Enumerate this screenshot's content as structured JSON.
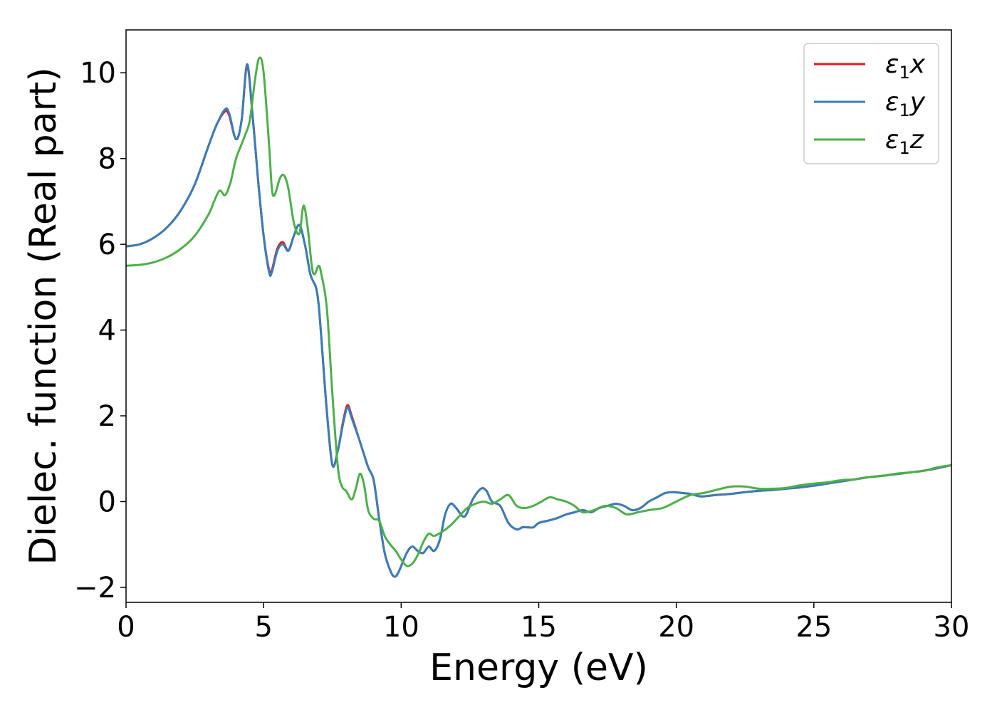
{
  "chart_data": {
    "type": "line",
    "title": "",
    "xlabel": "Energy (eV)",
    "ylabel": "Dielec. function (Real part)",
    "xlim": [
      0,
      30
    ],
    "ylim": [
      -2.35,
      11.0
    ],
    "xticks": [
      0,
      5,
      10,
      15,
      20,
      25,
      30
    ],
    "xtick_labels": [
      "0",
      "5",
      "10",
      "15",
      "20",
      "25",
      "30"
    ],
    "yticks": [
      -2,
      0,
      2,
      4,
      6,
      8,
      10
    ],
    "ytick_labels": [
      "−2",
      "0",
      "2",
      "4",
      "6",
      "8",
      "10"
    ],
    "grid": false,
    "legend_position": "top-right",
    "series": [
      {
        "name": "ε₁x",
        "legend_main": "ε",
        "legend_sub": "1",
        "legend_var": "x",
        "color": "#e41a1c",
        "x": [
          0,
          0.5,
          1,
          1.5,
          2,
          2.5,
          3,
          3.3,
          3.6,
          3.75,
          4.0,
          4.2,
          4.4,
          4.6,
          4.8,
          5.0,
          5.2,
          5.3,
          5.5,
          5.7,
          5.9,
          6.1,
          6.3,
          6.5,
          6.7,
          6.9,
          7.0,
          7.1,
          7.3,
          7.5,
          7.7,
          7.9,
          8.05,
          8.2,
          8.5,
          8.8,
          9.0,
          9.2,
          9.4,
          9.6,
          9.75,
          9.9,
          10.2,
          10.4,
          10.6,
          10.8,
          11.0,
          11.2,
          11.4,
          11.6,
          11.8,
          12.0,
          12.3,
          12.6,
          12.9,
          13.1,
          13.3,
          13.6,
          13.9,
          14.2,
          14.4,
          14.6,
          14.8,
          15.0,
          15.3,
          15.6,
          15.8,
          16.0,
          16.3,
          16.6,
          16.9,
          17.2,
          17.5,
          17.8,
          18.1,
          18.4,
          18.7,
          19.0,
          19.3,
          19.6,
          19.9,
          20.2,
          20.5,
          20.9,
          21.4,
          22.0,
          22.5,
          23.0,
          23.5,
          24.0,
          24.5,
          25.0,
          25.5,
          26.0,
          26.5,
          27.0,
          27.5,
          28.0,
          28.5,
          29.0,
          29.5,
          30.0
        ],
        "y": [
          5.95,
          6.0,
          6.15,
          6.4,
          6.8,
          7.4,
          8.3,
          8.8,
          9.1,
          9.0,
          8.45,
          8.9,
          10.15,
          9.0,
          7.5,
          6.2,
          5.4,
          5.4,
          5.9,
          6.05,
          5.85,
          6.2,
          6.45,
          6.0,
          5.3,
          5.0,
          4.6,
          3.8,
          2.1,
          0.85,
          1.2,
          1.9,
          2.25,
          2.0,
          1.4,
          0.8,
          0.5,
          -0.4,
          -1.2,
          -1.6,
          -1.75,
          -1.65,
          -1.2,
          -1.05,
          -1.15,
          -1.2,
          -1.05,
          -1.15,
          -0.9,
          -0.3,
          -0.05,
          -0.15,
          -0.35,
          0.05,
          0.3,
          0.25,
          0.0,
          -0.1,
          -0.5,
          -0.65,
          -0.6,
          -0.6,
          -0.6,
          -0.5,
          -0.45,
          -0.4,
          -0.35,
          -0.3,
          -0.25,
          -0.2,
          -0.25,
          -0.15,
          -0.1,
          -0.05,
          -0.1,
          -0.2,
          -0.15,
          0.0,
          0.1,
          0.2,
          0.22,
          0.2,
          0.18,
          0.12,
          0.15,
          0.18,
          0.22,
          0.25,
          0.27,
          0.3,
          0.33,
          0.37,
          0.42,
          0.47,
          0.52,
          0.57,
          0.6,
          0.64,
          0.68,
          0.72,
          0.78,
          0.85
        ]
      },
      {
        "name": "ε₁y",
        "legend_main": "ε",
        "legend_sub": "1",
        "legend_var": "y",
        "color": "#377eb8",
        "x": [
          0,
          0.5,
          1,
          1.5,
          2,
          2.5,
          3,
          3.3,
          3.6,
          3.75,
          4.0,
          4.2,
          4.4,
          4.6,
          4.8,
          5.0,
          5.2,
          5.3,
          5.5,
          5.7,
          5.9,
          6.1,
          6.3,
          6.5,
          6.7,
          6.9,
          7.0,
          7.1,
          7.3,
          7.5,
          7.7,
          7.9,
          8.05,
          8.2,
          8.5,
          8.8,
          9.0,
          9.2,
          9.4,
          9.6,
          9.75,
          9.9,
          10.2,
          10.4,
          10.6,
          10.8,
          11.0,
          11.2,
          11.4,
          11.6,
          11.8,
          12.0,
          12.3,
          12.6,
          12.9,
          13.1,
          13.3,
          13.6,
          13.9,
          14.2,
          14.4,
          14.6,
          14.8,
          15.0,
          15.3,
          15.6,
          15.8,
          16.0,
          16.3,
          16.6,
          16.9,
          17.2,
          17.5,
          17.8,
          18.1,
          18.4,
          18.7,
          19.0,
          19.3,
          19.6,
          19.9,
          20.2,
          20.5,
          20.9,
          21.4,
          22.0,
          22.5,
          23.0,
          23.5,
          24.0,
          24.5,
          25.0,
          25.5,
          26.0,
          26.5,
          27.0,
          27.5,
          28.0,
          28.5,
          29.0,
          29.5,
          30.0
        ],
        "y": [
          5.95,
          6.0,
          6.15,
          6.4,
          6.8,
          7.4,
          8.3,
          8.8,
          9.15,
          9.05,
          8.45,
          8.9,
          10.2,
          9.0,
          7.5,
          6.2,
          5.35,
          5.35,
          5.85,
          6.0,
          5.85,
          6.2,
          6.45,
          6.0,
          5.3,
          5.0,
          4.6,
          3.8,
          2.1,
          0.85,
          1.2,
          1.85,
          2.2,
          1.95,
          1.4,
          0.8,
          0.5,
          -0.4,
          -1.2,
          -1.6,
          -1.75,
          -1.65,
          -1.2,
          -1.05,
          -1.15,
          -1.2,
          -1.05,
          -1.15,
          -0.9,
          -0.3,
          -0.05,
          -0.15,
          -0.35,
          0.05,
          0.3,
          0.25,
          0.0,
          -0.1,
          -0.5,
          -0.65,
          -0.6,
          -0.6,
          -0.6,
          -0.5,
          -0.45,
          -0.4,
          -0.35,
          -0.3,
          -0.25,
          -0.2,
          -0.25,
          -0.15,
          -0.1,
          -0.05,
          -0.1,
          -0.2,
          -0.15,
          0.0,
          0.1,
          0.2,
          0.22,
          0.2,
          0.18,
          0.12,
          0.15,
          0.18,
          0.22,
          0.25,
          0.27,
          0.3,
          0.33,
          0.37,
          0.42,
          0.47,
          0.52,
          0.57,
          0.6,
          0.64,
          0.68,
          0.72,
          0.78,
          0.85
        ]
      },
      {
        "name": "ε₁z",
        "legend_main": "ε",
        "legend_sub": "1",
        "legend_var": "z",
        "color": "#4daf4a",
        "x": [
          0,
          0.5,
          1,
          1.5,
          2,
          2.5,
          3,
          3.2,
          3.4,
          3.6,
          3.8,
          4.0,
          4.3,
          4.5,
          4.7,
          4.85,
          5.0,
          5.2,
          5.3,
          5.4,
          5.6,
          5.75,
          5.9,
          6.1,
          6.3,
          6.45,
          6.6,
          6.75,
          6.85,
          7.0,
          7.1,
          7.3,
          7.5,
          7.7,
          7.85,
          8.0,
          8.2,
          8.35,
          8.5,
          8.65,
          8.8,
          9.0,
          9.2,
          9.4,
          9.6,
          9.8,
          10.0,
          10.2,
          10.4,
          10.6,
          10.8,
          11.0,
          11.2,
          11.5,
          11.8,
          12.1,
          12.4,
          12.7,
          13.0,
          13.3,
          13.6,
          13.9,
          14.2,
          14.5,
          14.8,
          15.1,
          15.4,
          15.7,
          16.0,
          16.3,
          16.6,
          17.0,
          17.4,
          17.8,
          18.2,
          18.6,
          19.0,
          19.5,
          20.0,
          20.5,
          21.0,
          21.5,
          22.0,
          22.5,
          23.0,
          23.5,
          24.0,
          24.5,
          25.0,
          25.5,
          26.0,
          26.5,
          27.0,
          27.5,
          28.0,
          28.5,
          29.0,
          29.5,
          30.0
        ],
        "y": [
          5.5,
          5.52,
          5.58,
          5.7,
          5.9,
          6.2,
          6.7,
          7.0,
          7.25,
          7.15,
          7.45,
          8.0,
          8.5,
          8.9,
          9.9,
          10.35,
          10.0,
          8.3,
          7.3,
          7.15,
          7.55,
          7.6,
          7.3,
          6.5,
          6.25,
          6.9,
          6.4,
          5.5,
          5.3,
          5.5,
          5.3,
          4.5,
          2.5,
          0.8,
          0.35,
          0.25,
          0.05,
          0.3,
          0.65,
          0.4,
          -0.2,
          -0.4,
          -0.45,
          -0.8,
          -1.0,
          -1.15,
          -1.35,
          -1.5,
          -1.45,
          -1.25,
          -0.95,
          -0.75,
          -0.8,
          -0.7,
          -0.55,
          -0.35,
          -0.15,
          -0.05,
          0.0,
          -0.05,
          0.05,
          0.15,
          -0.1,
          -0.15,
          -0.1,
          0.0,
          0.1,
          0.05,
          0.0,
          -0.1,
          -0.25,
          -0.2,
          -0.1,
          -0.15,
          -0.3,
          -0.25,
          -0.2,
          -0.15,
          0.0,
          0.15,
          0.2,
          0.28,
          0.35,
          0.35,
          0.3,
          0.3,
          0.32,
          0.38,
          0.42,
          0.45,
          0.5,
          0.52,
          0.57,
          0.6,
          0.65,
          0.68,
          0.72,
          0.8,
          0.85
        ]
      }
    ]
  }
}
